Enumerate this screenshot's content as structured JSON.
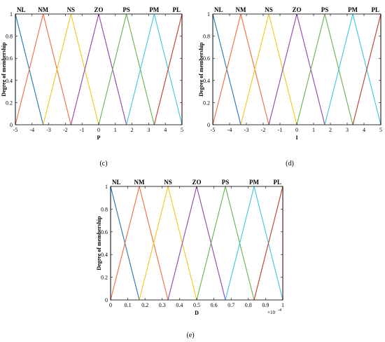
{
  "chart_data": [
    {
      "id": "c",
      "type": "line",
      "caption": "(c)",
      "xlabel": "P",
      "ylabel": "Degree of membership",
      "xlim": [
        -5,
        5
      ],
      "ylim": [
        0,
        1
      ],
      "xticks": [
        "-5",
        "-4",
        "-3",
        "-2",
        "-1",
        "0",
        "1",
        "2",
        "3",
        "4",
        "5"
      ],
      "yticks": [
        "0",
        "0.2",
        "0.4",
        "0.6",
        "0.8",
        "1"
      ],
      "exponent_label": "",
      "series": [
        {
          "name": "NL",
          "color": "#1f77b4",
          "x": [
            -5,
            -5,
            -3.333
          ],
          "y": [
            0,
            1,
            0
          ]
        },
        {
          "name": "NM",
          "color": "#f26b38",
          "x": [
            -5,
            -3.333,
            -1.667
          ],
          "y": [
            0,
            1,
            0
          ]
        },
        {
          "name": "NS",
          "color": "#f5c518",
          "x": [
            -3.333,
            -1.667,
            0
          ],
          "y": [
            0,
            1,
            0
          ]
        },
        {
          "name": "ZO",
          "color": "#8e44ad",
          "x": [
            -1.667,
            0,
            1.667
          ],
          "y": [
            0,
            1,
            0
          ]
        },
        {
          "name": "PS",
          "color": "#6ab04c",
          "x": [
            0,
            1.667,
            3.333
          ],
          "y": [
            0,
            1,
            0
          ]
        },
        {
          "name": "PM",
          "color": "#3ec8e0",
          "x": [
            1.667,
            3.333,
            5
          ],
          "y": [
            0,
            1,
            0
          ]
        },
        {
          "name": "PL",
          "color": "#c0392b",
          "x": [
            3.333,
            5,
            5
          ],
          "y": [
            0,
            1,
            0
          ]
        }
      ]
    },
    {
      "id": "d",
      "type": "line",
      "caption": "(d)",
      "xlabel": "I",
      "ylabel": "Degree of membership",
      "xlim": [
        -5,
        5
      ],
      "ylim": [
        0,
        1
      ],
      "xticks": [
        "-5",
        "-4",
        "-3",
        "-2",
        "-1",
        "0",
        "1",
        "2",
        "3",
        "4",
        "5"
      ],
      "yticks": [
        "0",
        "0.2",
        "0.4",
        "0.6",
        "0.8",
        "1"
      ],
      "exponent_label": "",
      "series": [
        {
          "name": "NL",
          "color": "#1f77b4",
          "x": [
            -5,
            -5,
            -3.333
          ],
          "y": [
            0,
            1,
            0
          ]
        },
        {
          "name": "NM",
          "color": "#f26b38",
          "x": [
            -5,
            -3.333,
            -1.667
          ],
          "y": [
            0,
            1,
            0
          ]
        },
        {
          "name": "NS",
          "color": "#f5c518",
          "x": [
            -3.333,
            -1.667,
            0
          ],
          "y": [
            0,
            1,
            0
          ]
        },
        {
          "name": "ZO",
          "color": "#8e44ad",
          "x": [
            -1.667,
            0,
            1.667
          ],
          "y": [
            0,
            1,
            0
          ]
        },
        {
          "name": "PS",
          "color": "#6ab04c",
          "x": [
            0,
            1.667,
            3.333
          ],
          "y": [
            0,
            1,
            0
          ]
        },
        {
          "name": "PM",
          "color": "#3ec8e0",
          "x": [
            1.667,
            3.333,
            5
          ],
          "y": [
            0,
            1,
            0
          ]
        },
        {
          "name": "PL",
          "color": "#c0392b",
          "x": [
            3.333,
            5,
            5
          ],
          "y": [
            0,
            1,
            0
          ]
        }
      ]
    },
    {
      "id": "e",
      "type": "line",
      "caption": "(e)",
      "xlabel": "D",
      "ylabel": "Degree of membership",
      "xlim": [
        0,
        1
      ],
      "ylim": [
        0,
        1
      ],
      "xticks": [
        "0",
        "0.1",
        "0.2",
        "0.3",
        "0.4",
        "0.5",
        "0.6",
        "0.7",
        "0.8",
        "0.9",
        "1"
      ],
      "yticks": [
        "0",
        "0.2",
        "0.4",
        "0.6",
        "0.8",
        "1"
      ],
      "exponent_label": "×10",
      "exponent_power": "-4",
      "series": [
        {
          "name": "NL",
          "color": "#1f77b4",
          "x": [
            0,
            0,
            0.1667
          ],
          "y": [
            0,
            1,
            0
          ]
        },
        {
          "name": "NM",
          "color": "#f26b38",
          "x": [
            0,
            0.1667,
            0.3333
          ],
          "y": [
            0,
            1,
            0
          ]
        },
        {
          "name": "NS",
          "color": "#f5c518",
          "x": [
            0.1667,
            0.3333,
            0.5
          ],
          "y": [
            0,
            1,
            0
          ]
        },
        {
          "name": "ZO",
          "color": "#8e44ad",
          "x": [
            0.3333,
            0.5,
            0.6667
          ],
          "y": [
            0,
            1,
            0
          ]
        },
        {
          "name": "PS",
          "color": "#6ab04c",
          "x": [
            0.5,
            0.6667,
            0.8333
          ],
          "y": [
            0,
            1,
            0
          ]
        },
        {
          "name": "PM",
          "color": "#3ec8e0",
          "x": [
            0.6667,
            0.8333,
            1
          ],
          "y": [
            0,
            1,
            0
          ]
        },
        {
          "name": "PL",
          "color": "#c0392b",
          "x": [
            0.8333,
            1,
            1
          ],
          "y": [
            0,
            1,
            0
          ]
        }
      ]
    }
  ]
}
